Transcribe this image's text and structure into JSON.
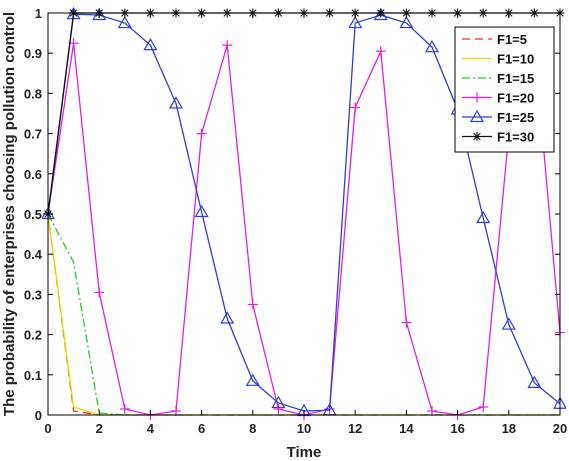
{
  "chart_data": {
    "type": "line",
    "title": "",
    "xlabel": "Time",
    "ylabel": "The probability of enterprises choosing pollution control",
    "xlim": [
      0,
      20
    ],
    "ylim": [
      0,
      1
    ],
    "xticks": [
      "0",
      "2",
      "4",
      "6",
      "8",
      "10",
      "12",
      "14",
      "16",
      "18",
      "20"
    ],
    "yticks": [
      "0",
      "0.1",
      "0.2",
      "0.3",
      "0.4",
      "0.5",
      "0.6",
      "0.7",
      "0.8",
      "0.9",
      "1"
    ],
    "legend_position": "top-right",
    "grid": false,
    "series": [
      {
        "name": "F1=5",
        "color": "#e8301c",
        "dash": "8,5",
        "marker": "none",
        "x": [
          0,
          1,
          2,
          3,
          4,
          5,
          6,
          7,
          8,
          9,
          10,
          11,
          12,
          13,
          14,
          15,
          16,
          17,
          18,
          19,
          20
        ],
        "y": [
          0.5,
          0.01,
          0.0,
          0.0,
          0.0,
          0.0,
          0.0,
          0.0,
          0.0,
          0.0,
          0.0,
          0.0,
          0.0,
          0.0,
          0.0,
          0.0,
          0.0,
          0.0,
          0.0,
          0.0,
          0.0
        ]
      },
      {
        "name": "F1=10",
        "color": "#e8d800",
        "dash": "",
        "marker": "none",
        "x": [
          0,
          1,
          2,
          3,
          4,
          5,
          6,
          7,
          8,
          9,
          10,
          11,
          12,
          13,
          14,
          15,
          16,
          17,
          18,
          19,
          20
        ],
        "y": [
          0.5,
          0.02,
          0.0,
          0.0,
          0.0,
          0.0,
          0.0,
          0.0,
          0.0,
          0.0,
          0.0,
          0.0,
          0.0,
          0.0,
          0.0,
          0.0,
          0.0,
          0.0,
          0.0,
          0.0,
          0.0
        ]
      },
      {
        "name": "F1=15",
        "color": "#22cc22",
        "dash": "8,3,2,3",
        "marker": "none",
        "x": [
          0,
          1,
          2,
          3,
          4,
          5,
          6,
          7,
          8,
          9,
          10,
          11,
          12,
          13,
          14,
          15,
          16,
          17,
          18,
          19,
          20
        ],
        "y": [
          0.5,
          0.38,
          0.005,
          0.0,
          0.0,
          0.0,
          0.0,
          0.0,
          0.0,
          0.0,
          0.0,
          0.0,
          0.0,
          0.0,
          0.0,
          0.0,
          0.0,
          0.0,
          0.0,
          0.0,
          0.0
        ]
      },
      {
        "name": "F1=20",
        "color": "#e020e0",
        "dash": "",
        "marker": "plus",
        "x": [
          0,
          1,
          2,
          3,
          4,
          5,
          6,
          7,
          8,
          9,
          10,
          11,
          12,
          13,
          14,
          15,
          16,
          17,
          18,
          19,
          20
        ],
        "y": [
          0.5,
          0.925,
          0.305,
          0.015,
          0.0,
          0.01,
          0.7,
          0.92,
          0.275,
          0.015,
          0.0,
          0.015,
          0.765,
          0.905,
          0.23,
          0.01,
          0.0,
          0.02,
          0.7,
          0.92,
          0.205
        ]
      },
      {
        "name": "F1=25",
        "color": "#2e3fd6",
        "dash": "",
        "marker": "triangle",
        "x": [
          0,
          1,
          2,
          3,
          4,
          5,
          6,
          7,
          8,
          9,
          10,
          11,
          12,
          13,
          14,
          15,
          16,
          17,
          18,
          19,
          20
        ],
        "y": [
          0.5,
          0.997,
          0.995,
          0.975,
          0.92,
          0.775,
          0.505,
          0.24,
          0.085,
          0.03,
          0.01,
          0.012,
          0.975,
          0.995,
          0.975,
          0.915,
          0.76,
          0.49,
          0.225,
          0.08,
          0.028
        ]
      },
      {
        "name": "F1=30",
        "color": "#111111",
        "dash": "",
        "marker": "star",
        "x": [
          0,
          1,
          2,
          3,
          4,
          5,
          6,
          7,
          8,
          9,
          10,
          11,
          12,
          13,
          14,
          15,
          16,
          17,
          18,
          19,
          20
        ],
        "y": [
          0.5,
          1.0,
          1.0,
          1.0,
          1.0,
          1.0,
          1.0,
          1.0,
          1.0,
          1.0,
          1.0,
          1.0,
          1.0,
          1.0,
          1.0,
          1.0,
          1.0,
          1.0,
          1.0,
          1.0,
          1.0
        ]
      }
    ]
  }
}
